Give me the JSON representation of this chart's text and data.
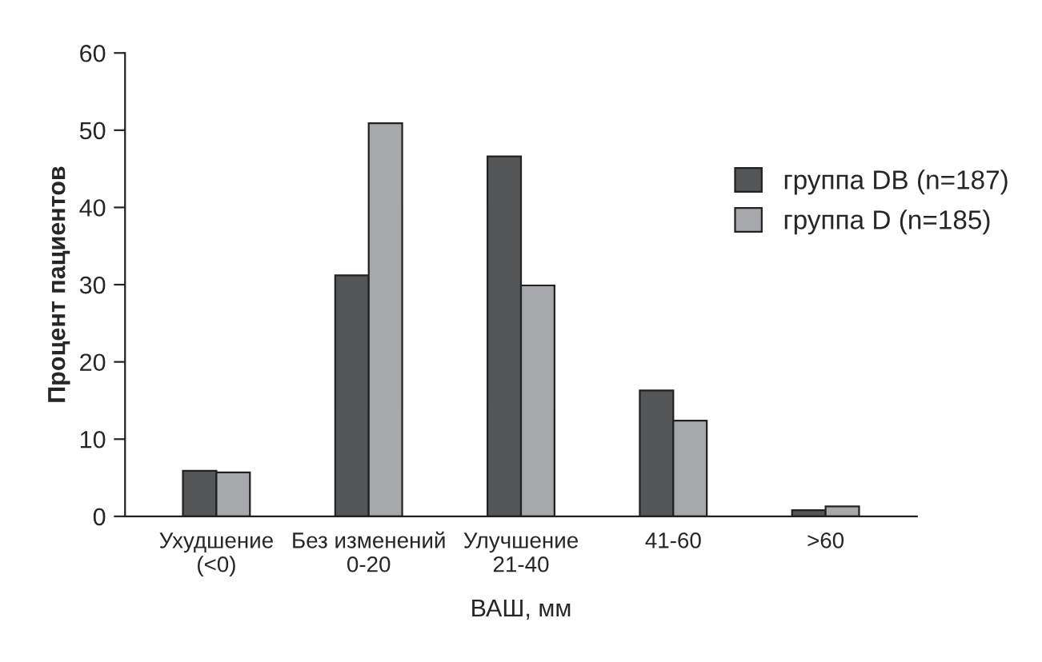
{
  "chart_data": {
    "type": "bar",
    "categories": [
      "Ухудшение\n(<0)",
      "Без изменений\n0-20",
      "Улучшение\n21-40",
      "41-60",
      ">60"
    ],
    "series": [
      {
        "name": "группа DB (n=187)",
        "color": "#555658",
        "values": [
          5.9,
          31.2,
          46.6,
          16.3,
          0.8
        ]
      },
      {
        "name": "группа D (n=185)",
        "color": "#a7a8ab",
        "values": [
          5.7,
          50.9,
          29.9,
          12.4,
          1.3
        ]
      }
    ],
    "xlabel": "ВАШ, мм",
    "ylabel": "Процент пациентов",
    "ylim": [
      0,
      60
    ],
    "yticks": [
      0,
      10,
      20,
      30,
      40,
      50,
      60
    ],
    "grid": false,
    "legend": "right"
  }
}
